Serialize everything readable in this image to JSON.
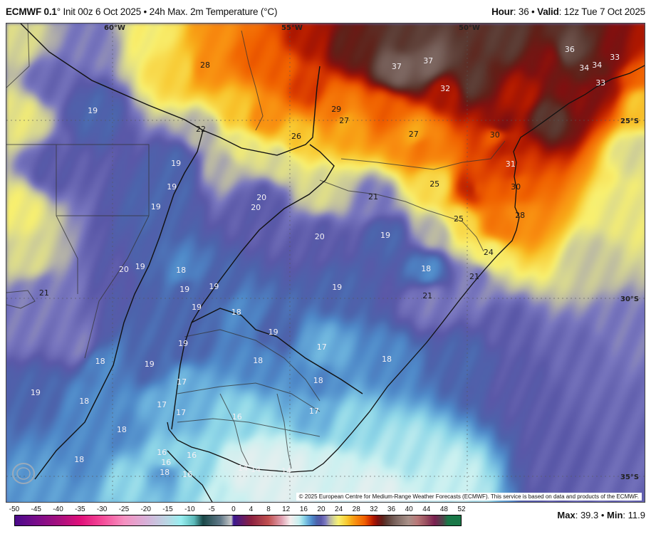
{
  "header": {
    "model": "ECMWF 0.1",
    "model_suffix": "°",
    "description": "Init 00z 6 Oct 2025 • 24h Max. 2m Temperature (°C)",
    "hour_label": "Hour",
    "hour_value": ": 36 • ",
    "valid_label": "Valid",
    "valid_value": ": 12z Tue 7 Oct 2025"
  },
  "map": {
    "grid_lon": [
      {
        "lon": -60,
        "label": "60°W"
      },
      {
        "lon": -55,
        "label": "55°W"
      },
      {
        "lon": -50,
        "label": "50°W"
      }
    ],
    "grid_lat": [
      {
        "lat": -25,
        "label": "25°S"
      },
      {
        "lat": -30,
        "label": "30°S"
      },
      {
        "lat": -35,
        "label": "35°S"
      }
    ],
    "temperature_labels": [
      {
        "t": 28,
        "lon": -57.39,
        "lat": -23.46
      },
      {
        "t": 37,
        "lon": -51.99,
        "lat": -23.5
      },
      {
        "t": 37,
        "lon": -51.1,
        "lat": -23.34
      },
      {
        "t": 36,
        "lon": -47.11,
        "lat": -23.02
      },
      {
        "t": 33,
        "lon": -45.84,
        "lat": -23.24
      },
      {
        "t": 34,
        "lon": -46.43,
        "lat": -23.46
      },
      {
        "t": 34,
        "lon": -46.61,
        "lat": -23.54
      },
      {
        "t": 33,
        "lon": -46.24,
        "lat": -23.96
      },
      {
        "t": 32,
        "lon": -50.62,
        "lat": -24.12
      },
      {
        "t": 29,
        "lon": -53.69,
        "lat": -24.7
      },
      {
        "t": 27,
        "lon": -53.47,
        "lat": -25.02
      },
      {
        "t": 26,
        "lon": -54.82,
        "lat": -25.46
      },
      {
        "t": 27,
        "lon": -51.51,
        "lat": -25.4
      },
      {
        "t": 30,
        "lon": -49.22,
        "lat": -25.42
      },
      {
        "t": 22,
        "lon": -57.51,
        "lat": -25.26
      },
      {
        "t": 19,
        "lon": -60.56,
        "lat": -24.74
      },
      {
        "t": 19,
        "lon": -58.21,
        "lat": -26.22
      },
      {
        "t": 19,
        "lon": -58.33,
        "lat": -26.88
      },
      {
        "t": 19,
        "lon": -58.78,
        "lat": -27.44
      },
      {
        "t": 20,
        "lon": -55.8,
        "lat": -27.24
      },
      {
        "t": 20,
        "lon": -55.96,
        "lat": -27.4
      },
      {
        "t": 21,
        "lon": -52.65,
        "lat": -27.16
      },
      {
        "t": 25,
        "lon": -50.92,
        "lat": -26.8
      },
      {
        "t": 25,
        "lon": -50.24,
        "lat": -27.78
      },
      {
        "t": 31,
        "lon": -48.78,
        "lat": -26.24
      },
      {
        "t": 30,
        "lon": -48.63,
        "lat": -26.88
      },
      {
        "t": 28,
        "lon": -48.51,
        "lat": -27.68
      },
      {
        "t": 24,
        "lon": -49.4,
        "lat": -28.72
      },
      {
        "t": 21,
        "lon": -49.8,
        "lat": -29.4
      },
      {
        "t": 20,
        "lon": -54.16,
        "lat": -28.28
      },
      {
        "t": 19,
        "lon": -52.31,
        "lat": -28.24
      },
      {
        "t": 18,
        "lon": -51.16,
        "lat": -29.18
      },
      {
        "t": 19,
        "lon": -53.67,
        "lat": -29.7
      },
      {
        "t": 21,
        "lon": -51.12,
        "lat": -29.94
      },
      {
        "t": 17,
        "lon": -54.1,
        "lat": -31.38
      },
      {
        "t": 18,
        "lon": -52.27,
        "lat": -31.72
      },
      {
        "t": 20,
        "lon": -59.68,
        "lat": -29.2
      },
      {
        "t": 19,
        "lon": -59.22,
        "lat": -29.12
      },
      {
        "t": 18,
        "lon": -58.07,
        "lat": -29.22
      },
      {
        "t": 19,
        "lon": -57.97,
        "lat": -29.76
      },
      {
        "t": 19,
        "lon": -57.14,
        "lat": -29.68
      },
      {
        "t": 19,
        "lon": -57.63,
        "lat": -30.26
      },
      {
        "t": 18,
        "lon": -56.51,
        "lat": -30.4
      },
      {
        "t": 19,
        "lon": -55.47,
        "lat": -30.96
      },
      {
        "t": 21,
        "lon": -61.93,
        "lat": -29.86
      },
      {
        "t": 19,
        "lon": -58.01,
        "lat": -31.28
      },
      {
        "t": 18,
        "lon": -55.9,
        "lat": -31.76
      },
      {
        "t": 18,
        "lon": -54.2,
        "lat": -32.32
      },
      {
        "t": 17,
        "lon": -54.32,
        "lat": -33.18
      },
      {
        "t": 18,
        "lon": -60.35,
        "lat": -31.78
      },
      {
        "t": 19,
        "lon": -58.96,
        "lat": -31.86
      },
      {
        "t": 19,
        "lon": -62.17,
        "lat": -32.66
      },
      {
        "t": 18,
        "lon": -60.8,
        "lat": -32.9
      },
      {
        "t": 17,
        "lon": -58.05,
        "lat": -32.36
      },
      {
        "t": 17,
        "lon": -58.61,
        "lat": -33.0
      },
      {
        "t": 17,
        "lon": -58.07,
        "lat": -33.22
      },
      {
        "t": 16,
        "lon": -56.49,
        "lat": -33.34
      },
      {
        "t": 18,
        "lon": -59.74,
        "lat": -33.7
      },
      {
        "t": 18,
        "lon": -60.94,
        "lat": -34.54
      },
      {
        "t": 16,
        "lon": -58.61,
        "lat": -34.5
      },
      {
        "t": 16,
        "lon": -58.49,
        "lat": -34.56
      },
      {
        "t": 16,
        "lon": -57.77,
        "lat": -34.42
      },
      {
        "t": 18,
        "lon": -58.53,
        "lat": -34.8
      },
      {
        "t": 16,
        "lon": -57.89,
        "lat": -34.96
      },
      {
        "t": 14,
        "lon": -56.27,
        "lat": -34.78
      },
      {
        "t": 14,
        "lon": -56.02,
        "lat": -34.82
      },
      {
        "t": 14,
        "lon": -55.1,
        "lat": -34.86
      }
    ],
    "copyright": "© 2025 European Centre for Medium-Range Weather Forecasts (ECMWF). This service is based on data and products of the ECMWF.",
    "logo_text": "WeatherBELL"
  },
  "colorbar": {
    "ticks": [
      "-50",
      "-45",
      "-40",
      "-35",
      "-30",
      "-25",
      "-20",
      "-15",
      "-10",
      "-5",
      "0",
      "4",
      "8",
      "12",
      "16",
      "20",
      "24",
      "28",
      "32",
      "36",
      "40",
      "44",
      "48",
      "52"
    ],
    "stops": [
      {
        "v": -50,
        "c": "#4a0a8a"
      },
      {
        "v": -45,
        "c": "#7a0c8a"
      },
      {
        "v": -40,
        "c": "#a5107e"
      },
      {
        "v": -35,
        "c": "#e0107a"
      },
      {
        "v": -30,
        "c": "#f54a98"
      },
      {
        "v": -25,
        "c": "#f590c0"
      },
      {
        "v": -20,
        "c": "#d8b0d8"
      },
      {
        "v": -15,
        "c": "#b8d8e4"
      },
      {
        "v": -12,
        "c": "#98eef0"
      },
      {
        "v": -9,
        "c": "#5ab8b8"
      },
      {
        "v": -7,
        "c": "#1a4848"
      },
      {
        "v": -3,
        "c": "#607888"
      },
      {
        "v": -0.5,
        "c": "#c8c8c8"
      },
      {
        "v": 0,
        "c": "#3a1890"
      },
      {
        "v": 4,
        "c": "#8a2040"
      },
      {
        "v": 8,
        "c": "#c05050"
      },
      {
        "v": 11,
        "c": "#e0a0b0"
      },
      {
        "v": 13,
        "c": "#f6eeee"
      },
      {
        "v": 15,
        "c": "#c8f0f0"
      },
      {
        "v": 16,
        "c": "#90d8e8"
      },
      {
        "v": 17,
        "c": "#6ab0dc"
      },
      {
        "v": 18,
        "c": "#4e88c8"
      },
      {
        "v": 19,
        "c": "#4c64ac"
      },
      {
        "v": 20,
        "c": "#5a58a8"
      },
      {
        "v": 21,
        "c": "#7a78c0"
      },
      {
        "v": 22,
        "c": "#b4b2a8"
      },
      {
        "v": 23,
        "c": "#d8d890"
      },
      {
        "v": 24,
        "c": "#f8f070"
      },
      {
        "v": 26,
        "c": "#f8c830"
      },
      {
        "v": 27,
        "c": "#f8a818"
      },
      {
        "v": 28,
        "c": "#f88c10"
      },
      {
        "v": 30,
        "c": "#f06000"
      },
      {
        "v": 31,
        "c": "#d83800"
      },
      {
        "v": 32,
        "c": "#b01800"
      },
      {
        "v": 33,
        "c": "#801010"
      },
      {
        "v": 34,
        "c": "#602018"
      },
      {
        "v": 35,
        "c": "#5a3a32"
      },
      {
        "v": 37,
        "c": "#7a645e"
      },
      {
        "v": 40,
        "c": "#a89088"
      },
      {
        "v": 42,
        "c": "#b87878"
      },
      {
        "v": 44,
        "c": "#9a5060"
      },
      {
        "v": 46,
        "c": "#7a2050"
      },
      {
        "v": 48,
        "c": "#4a4a4a"
      },
      {
        "v": 49,
        "c": "#1a7848"
      },
      {
        "v": 52,
        "c": "#1a7848"
      }
    ]
  },
  "stats": {
    "max_label": "Max",
    "max_value": "39.3",
    "sep": " • ",
    "min_label": "Min",
    "min_value": "11.9"
  }
}
